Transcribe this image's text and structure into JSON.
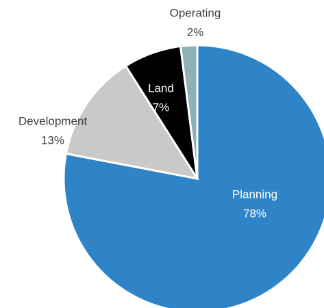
{
  "chart_data": {
    "type": "pie",
    "categories": [
      "Planning",
      "Development",
      "Land",
      "Operating"
    ],
    "values": [
      78,
      13,
      7,
      2
    ],
    "value_labels": [
      "78%",
      "13%",
      "7%",
      "2%"
    ],
    "colors": [
      "#2e84c6",
      "#c9c9c9",
      "#000000",
      "#8fb0b6"
    ]
  }
}
